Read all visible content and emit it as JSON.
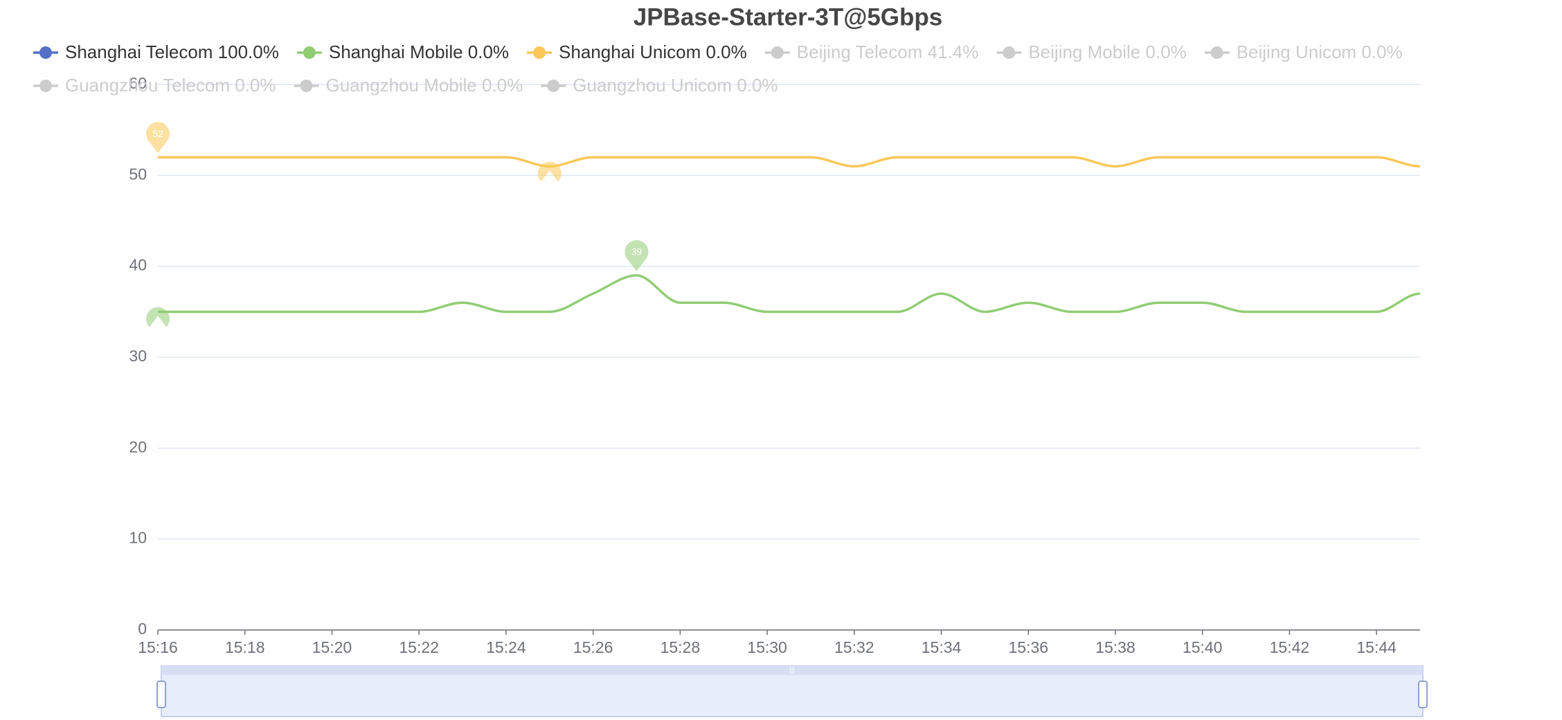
{
  "chart_data": {
    "type": "line",
    "title": "JPBase-Starter-3T@5Gbps",
    "categories": [
      "15:16",
      null,
      "15:18",
      null,
      "15:20",
      null,
      "15:22",
      null,
      "15:24",
      null,
      "15:26",
      null,
      "15:28",
      null,
      "15:30",
      null,
      "15:32",
      null,
      "15:34",
      null,
      "15:36",
      null,
      "15:38",
      null,
      "15:40",
      null,
      "15:42",
      null,
      "15:44",
      null
    ],
    "ylim": [
      0,
      60
    ],
    "yticks": [
      0,
      10,
      20,
      30,
      40,
      50,
      60
    ],
    "grid": true,
    "smooth": true,
    "mark_points": [
      "max",
      "min"
    ],
    "data_zoom": true,
    "legend_position": "top",
    "series": [
      {
        "name": "Shanghai Telecom 100.0%",
        "color": "#5470c6",
        "selected": true,
        "values": [
          null,
          null,
          null,
          null,
          null,
          null,
          null,
          null,
          null,
          null,
          null,
          null,
          null,
          null,
          null,
          null,
          null,
          null,
          null,
          null,
          null,
          null,
          null,
          null,
          null,
          null,
          null,
          null,
          null,
          null
        ]
      },
      {
        "name": "Shanghai Mobile 0.0%",
        "color": "#91cc75",
        "selected": true,
        "values": [
          35,
          35,
          35,
          35,
          35,
          35,
          35,
          36,
          35,
          35,
          37,
          39,
          36,
          36,
          35,
          35,
          35,
          35,
          37,
          35,
          36,
          35,
          35,
          36,
          36,
          35,
          35,
          35,
          35,
          37
        ]
      },
      {
        "name": "Shanghai Unicom 0.0%",
        "color": "#fac858",
        "selected": true,
        "values": [
          52,
          52,
          52,
          52,
          52,
          52,
          52,
          52,
          52,
          51,
          52,
          52,
          52,
          52,
          52,
          52,
          51,
          52,
          52,
          52,
          52,
          52,
          51,
          52,
          52,
          52,
          52,
          52,
          52,
          51
        ]
      },
      {
        "name": "Beijing Telecom 41.4%",
        "color": "#ee6666",
        "selected": false,
        "values": [
          null,
          null,
          null,
          null,
          null,
          null,
          null,
          null,
          null,
          null,
          null,
          null,
          null,
          null,
          null,
          null,
          null,
          null,
          null,
          null,
          null,
          null,
          null,
          null,
          null,
          null,
          null,
          null,
          null,
          null
        ]
      },
      {
        "name": "Beijing Mobile 0.0%",
        "color": "#73c0de",
        "selected": false,
        "values": [
          null,
          null,
          null,
          null,
          null,
          null,
          null,
          null,
          null,
          null,
          null,
          null,
          null,
          null,
          null,
          null,
          null,
          null,
          null,
          null,
          null,
          null,
          null,
          null,
          null,
          null,
          null,
          null,
          null,
          null
        ]
      },
      {
        "name": "Beijing Unicom 0.0%",
        "color": "#3ba272",
        "selected": false,
        "values": [
          null,
          null,
          null,
          null,
          null,
          null,
          null,
          null,
          null,
          null,
          null,
          null,
          null,
          null,
          null,
          null,
          null,
          null,
          null,
          null,
          null,
          null,
          null,
          null,
          null,
          null,
          null,
          null,
          null,
          null
        ]
      },
      {
        "name": "Guangzhou Telecom 0.0%",
        "color": "#fc8452",
        "selected": false,
        "values": [
          null,
          null,
          null,
          null,
          null,
          null,
          null,
          null,
          null,
          null,
          null,
          null,
          null,
          null,
          null,
          null,
          null,
          null,
          null,
          null,
          null,
          null,
          null,
          null,
          null,
          null,
          null,
          null,
          null,
          null
        ]
      },
      {
        "name": "Guangzhou Mobile 0.0%",
        "color": "#9a60b4",
        "selected": false,
        "values": [
          null,
          null,
          null,
          null,
          null,
          null,
          null,
          null,
          null,
          null,
          null,
          null,
          null,
          null,
          null,
          null,
          null,
          null,
          null,
          null,
          null,
          null,
          null,
          null,
          null,
          null,
          null,
          null,
          null,
          null
        ]
      },
      {
        "name": "Guangzhou Unicom 0.0%",
        "color": "#ea7ccc",
        "selected": false,
        "values": [
          null,
          null,
          null,
          null,
          null,
          null,
          null,
          null,
          null,
          null,
          null,
          null,
          null,
          null,
          null,
          null,
          null,
          null,
          null,
          null,
          null,
          null,
          null,
          null,
          null,
          null,
          null,
          null,
          null,
          null
        ]
      }
    ]
  }
}
